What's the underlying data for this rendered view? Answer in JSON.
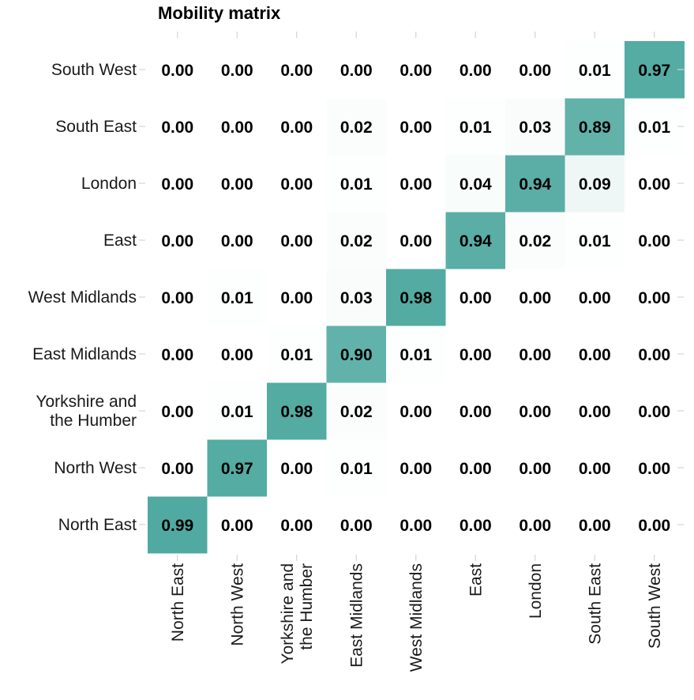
{
  "chart_data": {
    "type": "heatmap",
    "title": "Mobility matrix",
    "x_categories": [
      "North East",
      "North West",
      "Yorkshire and the Humber",
      "East Midlands",
      "West Midlands",
      "East",
      "London",
      "South East",
      "South West"
    ],
    "y_categories": [
      "North East",
      "North West",
      "Yorkshire and the Humber",
      "East Midlands",
      "West Midlands",
      "East",
      "London",
      "South East",
      "South West"
    ],
    "x_tick_labels": [
      [
        "North East"
      ],
      [
        "North West"
      ],
      [
        "Yorkshire and",
        "the Humber"
      ],
      [
        "East Midlands"
      ],
      [
        "West Midlands"
      ],
      [
        "East"
      ],
      [
        "London"
      ],
      [
        "South East"
      ],
      [
        "South West"
      ]
    ],
    "y_tick_labels": [
      [
        "North East"
      ],
      [
        "North West"
      ],
      [
        "Yorkshire and",
        "the Humber"
      ],
      [
        "East Midlands"
      ],
      [
        "West Midlands"
      ],
      [
        "East"
      ],
      [
        "London"
      ],
      [
        "South East"
      ],
      [
        "South West"
      ]
    ],
    "values": [
      [
        0.99,
        0.0,
        0.0,
        0.0,
        0.0,
        0.0,
        0.0,
        0.0,
        0.0
      ],
      [
        0.0,
        0.97,
        0.0,
        0.01,
        0.0,
        0.0,
        0.0,
        0.0,
        0.0
      ],
      [
        0.0,
        0.01,
        0.98,
        0.02,
        0.0,
        0.0,
        0.0,
        0.0,
        0.0
      ],
      [
        0.0,
        0.0,
        0.01,
        0.9,
        0.01,
        0.0,
        0.0,
        0.0,
        0.0
      ],
      [
        0.0,
        0.01,
        0.0,
        0.03,
        0.98,
        0.0,
        0.0,
        0.0,
        0.0
      ],
      [
        0.0,
        0.0,
        0.0,
        0.02,
        0.0,
        0.94,
        0.02,
        0.01,
        0.0
      ],
      [
        0.0,
        0.0,
        0.0,
        0.01,
        0.0,
        0.04,
        0.94,
        0.09,
        0.0
      ],
      [
        0.0,
        0.0,
        0.0,
        0.02,
        0.0,
        0.01,
        0.03,
        0.89,
        0.01
      ],
      [
        0.0,
        0.0,
        0.0,
        0.0,
        0.0,
        0.0,
        0.0,
        0.01,
        0.97
      ]
    ],
    "value_range": [
      0,
      1
    ],
    "color_low": "#ffffff",
    "color_high": "#4fa9a0",
    "grid": false,
    "legend": "none"
  }
}
